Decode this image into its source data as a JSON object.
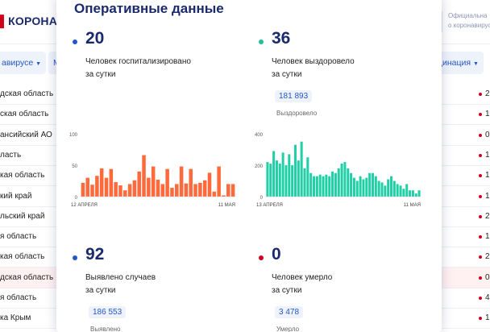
{
  "background": {
    "logo_red": "",
    "logo_text": "КОРОНАВИ",
    "official_line1": "Официальна",
    "official_line2": "о коронавирус",
    "filter_left": "авирусе",
    "filter_mid": "М",
    "filter_right": "цинация",
    "rows": [
      {
        "region": "дская область",
        "value": "2"
      },
      {
        "region": "ская область",
        "value": "1"
      },
      {
        "region": "ансийский АО",
        "value": "0"
      },
      {
        "region": "ласть",
        "value": "1"
      },
      {
        "region": "кая область",
        "value": "1"
      },
      {
        "region": "кий край",
        "value": "1"
      },
      {
        "region": "льский край",
        "value": "2"
      },
      {
        "region": "я область",
        "value": "1"
      },
      {
        "region": "кая область",
        "value": "2"
      },
      {
        "region": "дская область",
        "value": "0"
      },
      {
        "region": "я область",
        "value": "4"
      },
      {
        "region": "ка Крым",
        "value": "1"
      }
    ]
  },
  "modal": {
    "title": "Оперативные данные",
    "stats": [
      {
        "id": "hospitalized",
        "number": "20",
        "desc1": "Человек госпитализировано",
        "desc2": "за сутки",
        "color": "#2456c9"
      },
      {
        "id": "recovered",
        "number": "36",
        "desc1": "Человек выздоровело",
        "desc2": "за сутки",
        "color": "#1fbf9a",
        "badge": "181 893",
        "badge_label": "Выздоровело"
      },
      {
        "id": "cases",
        "number": "92",
        "desc1": "Выявлено случаев",
        "desc2": "за сутки",
        "color": "#2456c9",
        "badge": "186 553",
        "badge_label": "Выявлено"
      },
      {
        "id": "deaths",
        "number": "0",
        "desc1": "Человек умерло",
        "desc2": "за сутки",
        "color": "#d0021b",
        "badge": "3 478",
        "badge_label": "Умерло"
      }
    ]
  },
  "chart_data": [
    {
      "type": "bar",
      "color": "#ff6a3d",
      "ylim": [
        0,
        100
      ],
      "yticks": [
        "100",
        "50",
        "0"
      ],
      "x_start_label": "12 АПРЕЛЯ",
      "x_end_label": "11 МАЯ",
      "values": [
        22,
        30,
        19,
        33,
        45,
        30,
        44,
        23,
        18,
        10,
        20,
        26,
        40,
        66,
        30,
        48,
        27,
        20,
        44,
        14,
        20,
        48,
        21,
        44,
        20,
        22,
        26,
        38,
        8,
        48,
        2,
        20,
        20
      ]
    },
    {
      "type": "bar",
      "color": "#1fd0a6",
      "ylim": [
        0,
        400
      ],
      "yticks": [
        "400",
        "200",
        "0"
      ],
      "x_start_label": "13 АПРЕЛЯ",
      "x_end_label": "11 МАЯ",
      "values": [
        220,
        210,
        290,
        230,
        210,
        280,
        200,
        270,
        200,
        330,
        230,
        350,
        180,
        250,
        150,
        130,
        130,
        140,
        130,
        140,
        130,
        160,
        150,
        180,
        210,
        220,
        180,
        150,
        120,
        100,
        130,
        110,
        120,
        150,
        150,
        130,
        100,
        90,
        70,
        110,
        130,
        100,
        80,
        70,
        50,
        80,
        40,
        40,
        20,
        40
      ]
    }
  ]
}
